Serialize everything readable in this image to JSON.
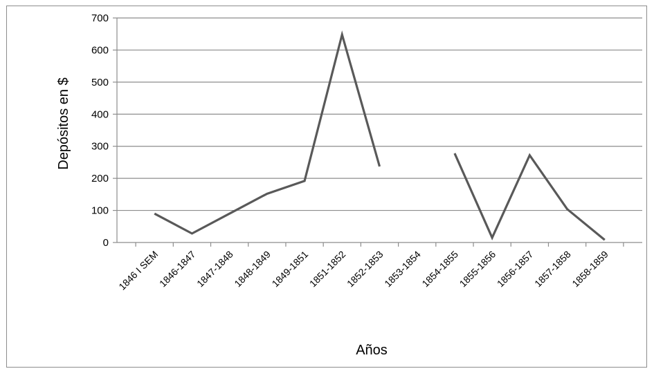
{
  "chart_data": {
    "type": "line",
    "title": "",
    "xlabel": "Años",
    "ylabel": "Depósitos en $",
    "ylim": [
      0,
      700
    ],
    "yticks": [
      0,
      100,
      200,
      300,
      400,
      500,
      600,
      700
    ],
    "grid": true,
    "legend": "none",
    "categories": [
      "1846 I SEM",
      "1846-1847",
      "1847-1848",
      "1848-1849",
      "1849-1851",
      "1851-1852",
      "1852-1853",
      "1853-1854",
      "1854-1855",
      "1855-1856",
      "1856-1857",
      "1857-1858",
      "1858-1859"
    ],
    "series": [
      {
        "color": "#595959",
        "values": [
          90,
          28,
          90,
          152,
          192,
          648,
          237,
          null,
          278,
          15,
          272,
          104,
          8
        ]
      }
    ]
  }
}
